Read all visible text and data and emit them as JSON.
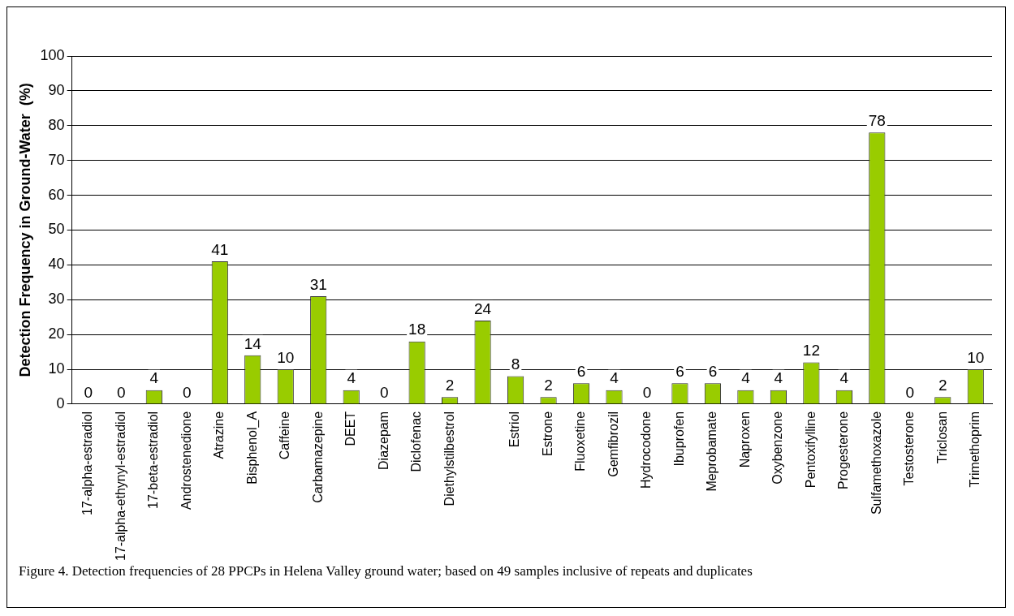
{
  "chart_data": {
    "type": "bar",
    "ylabel": "Detection Frequency in Ground-Water  (%)",
    "categories": [
      "17-alpha-estradiol",
      "17-alpha-ethynyl-estradiol",
      "17-beta-estradiol",
      "Androstenedione",
      "Atrazine",
      "Bisphenol_A",
      "Caffeine",
      "Carbamazepine",
      "DEET",
      "Diazepam",
      "Diclofenac",
      "Diethylstilbestrol",
      null,
      "Estriol",
      "Estrone",
      "Fluoxetine",
      "Gemfibrozil",
      "Hydrocodone",
      "Ibuprofen",
      "Meprobamate",
      "Naproxen",
      "Oxybenzone",
      "Pentoxifylline",
      "Progesterone",
      "Sulfamethoxazole",
      "Testosterone",
      "Triclosan",
      "Trimethoprim"
    ],
    "values": [
      0,
      0,
      4,
      0,
      41,
      14,
      10,
      31,
      4,
      0,
      18,
      2,
      24,
      8,
      2,
      6,
      4,
      0,
      6,
      6,
      4,
      4,
      12,
      4,
      78,
      0,
      2,
      10
    ],
    "color": "#99cc00",
    "ylim": [
      0,
      100
    ],
    "yticks": [
      0,
      10,
      20,
      30,
      40,
      50,
      60,
      70,
      80,
      90,
      100
    ],
    "grid": "y",
    "legend": false,
    "data_labels": true,
    "annotations": [
      "Figure 4. Detection frequencies of 28 PPCPs in Helena Valley ground water; based on 49 samples inclusive of repeats and duplicates"
    ]
  }
}
